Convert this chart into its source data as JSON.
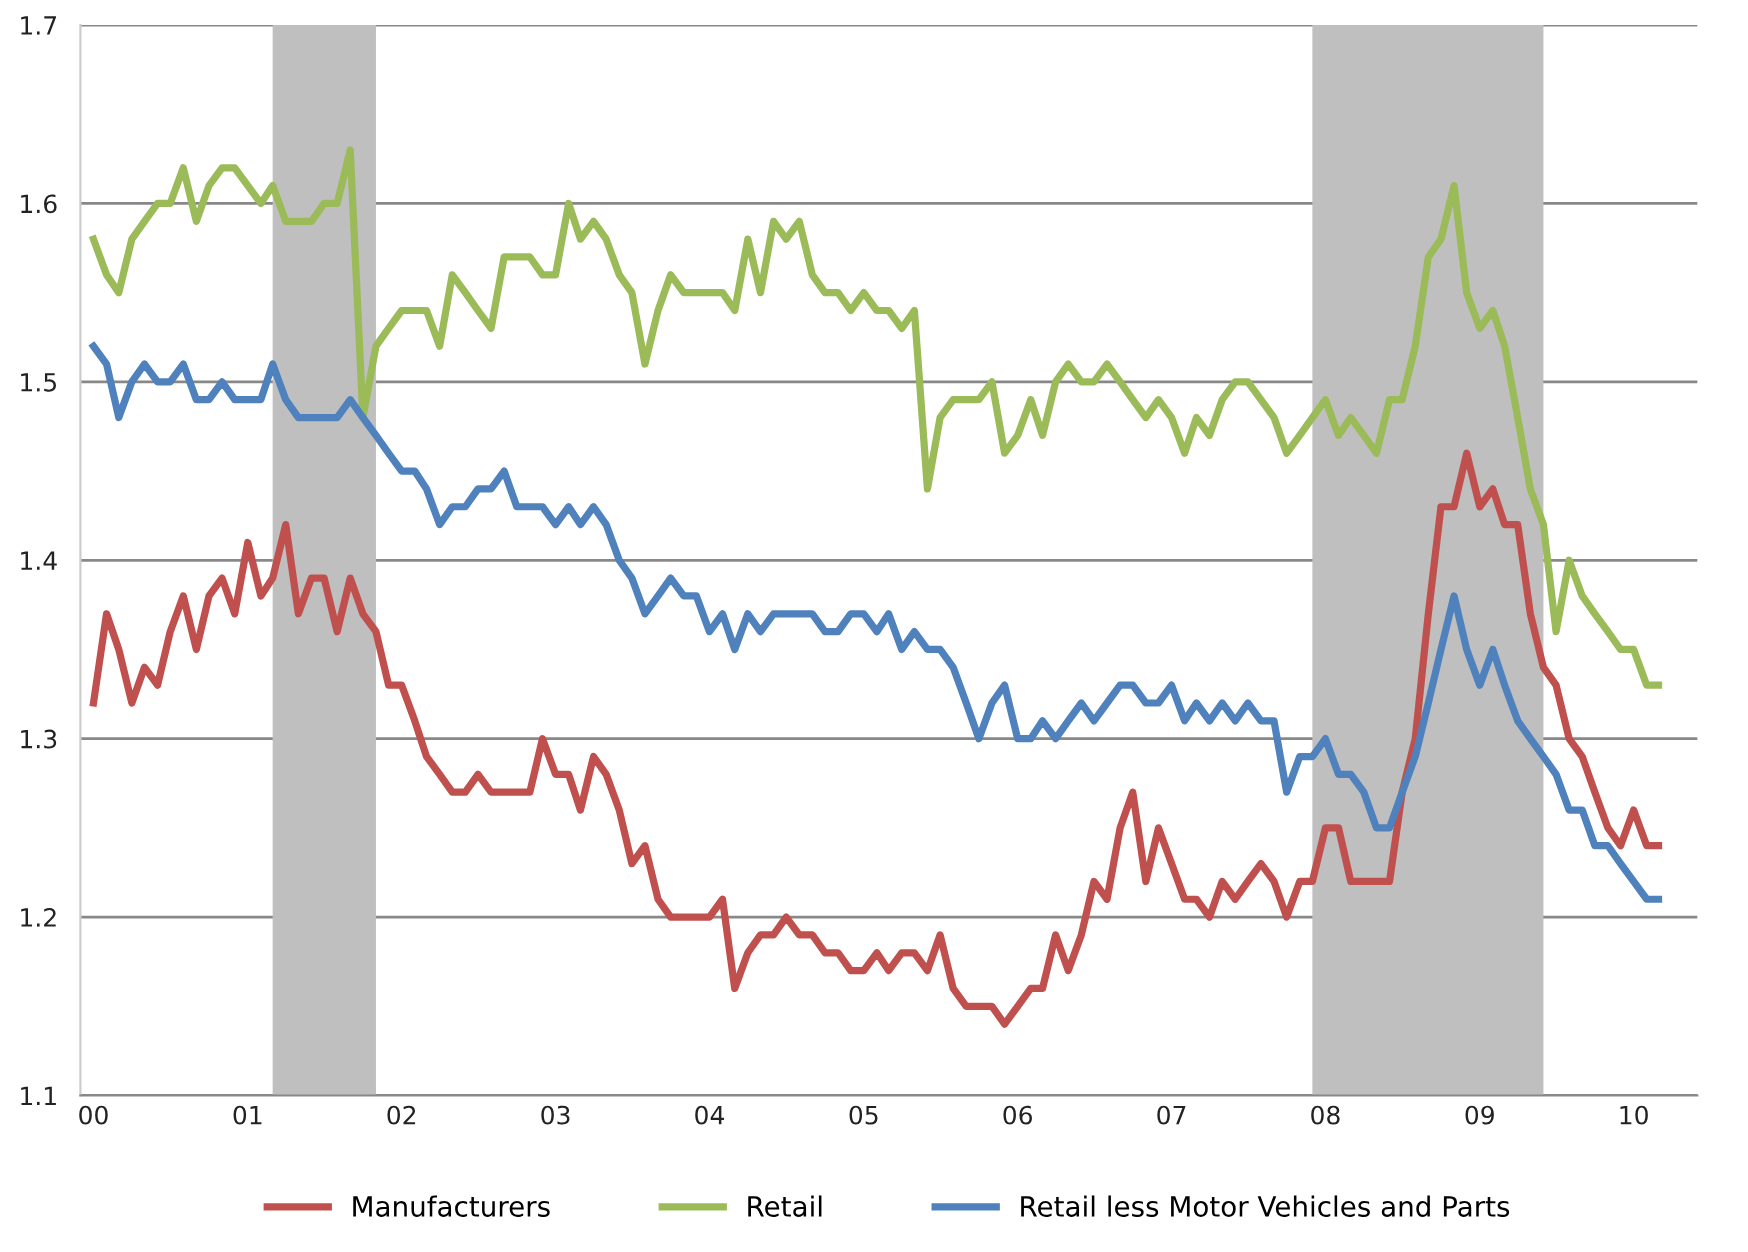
{
  "chart_data": {
    "type": "line",
    "x": [
      "2000-01",
      "2000-02",
      "2000-03",
      "2000-04",
      "2000-05",
      "2000-06",
      "2000-07",
      "2000-08",
      "2000-09",
      "2000-10",
      "2000-11",
      "2000-12",
      "2001-01",
      "2001-02",
      "2001-03",
      "2001-04",
      "2001-05",
      "2001-06",
      "2001-07",
      "2001-08",
      "2001-09",
      "2001-10",
      "2001-11",
      "2001-12",
      "2002-01",
      "2002-02",
      "2002-03",
      "2002-04",
      "2002-05",
      "2002-06",
      "2002-07",
      "2002-08",
      "2002-09",
      "2002-10",
      "2002-11",
      "2002-12",
      "2003-01",
      "2003-02",
      "2003-03",
      "2003-04",
      "2003-05",
      "2003-06",
      "2003-07",
      "2003-08",
      "2003-09",
      "2003-10",
      "2003-11",
      "2003-12",
      "2004-01",
      "2004-02",
      "2004-03",
      "2004-04",
      "2004-05",
      "2004-06",
      "2004-07",
      "2004-08",
      "2004-09",
      "2004-10",
      "2004-11",
      "2004-12",
      "2005-01",
      "2005-02",
      "2005-03",
      "2005-04",
      "2005-05",
      "2005-06",
      "2005-07",
      "2005-08",
      "2005-09",
      "2005-10",
      "2005-11",
      "2005-12",
      "2006-01",
      "2006-02",
      "2006-03",
      "2006-04",
      "2006-05",
      "2006-06",
      "2006-07",
      "2006-08",
      "2006-09",
      "2006-10",
      "2006-11",
      "2006-12",
      "2007-01",
      "2007-02",
      "2007-03",
      "2007-04",
      "2007-05",
      "2007-06",
      "2007-07",
      "2007-08",
      "2007-09",
      "2007-10",
      "2007-11",
      "2007-12",
      "2008-01",
      "2008-02",
      "2008-03",
      "2008-04",
      "2008-05",
      "2008-06",
      "2008-07",
      "2008-08",
      "2008-09",
      "2008-10",
      "2008-11",
      "2008-12",
      "2009-01",
      "2009-02",
      "2009-03",
      "2009-04",
      "2009-05",
      "2009-06",
      "2009-07",
      "2009-08",
      "2009-09",
      "2009-10",
      "2009-11",
      "2009-12",
      "2010-01",
      "2010-02",
      "2010-03"
    ],
    "series": [
      {
        "name": "Manufacturers",
        "color": "#c0504d",
        "values": [
          1.32,
          1.37,
          1.35,
          1.32,
          1.34,
          1.33,
          1.36,
          1.38,
          1.35,
          1.38,
          1.39,
          1.37,
          1.41,
          1.38,
          1.39,
          1.42,
          1.37,
          1.39,
          1.39,
          1.36,
          1.39,
          1.37,
          1.36,
          1.33,
          1.33,
          1.31,
          1.29,
          1.28,
          1.27,
          1.27,
          1.28,
          1.27,
          1.27,
          1.27,
          1.27,
          1.3,
          1.28,
          1.28,
          1.26,
          1.29,
          1.28,
          1.26,
          1.23,
          1.24,
          1.21,
          1.2,
          1.2,
          1.2,
          1.2,
          1.21,
          1.16,
          1.18,
          1.19,
          1.19,
          1.2,
          1.19,
          1.19,
          1.18,
          1.18,
          1.17,
          1.17,
          1.18,
          1.17,
          1.18,
          1.18,
          1.17,
          1.19,
          1.16,
          1.15,
          1.15,
          1.15,
          1.14,
          1.15,
          1.16,
          1.16,
          1.19,
          1.17,
          1.19,
          1.22,
          1.21,
          1.25,
          1.27,
          1.22,
          1.25,
          1.23,
          1.21,
          1.21,
          1.2,
          1.22,
          1.21,
          1.22,
          1.23,
          1.22,
          1.2,
          1.22,
          1.22,
          1.25,
          1.25,
          1.22,
          1.22,
          1.22,
          1.22,
          1.27,
          1.3,
          1.37,
          1.43,
          1.43,
          1.46,
          1.43,
          1.44,
          1.42,
          1.42,
          1.37,
          1.34,
          1.33,
          1.3,
          1.29,
          1.27,
          1.25,
          1.24,
          1.26,
          1.24,
          1.24
        ]
      },
      {
        "name": "Retail",
        "color": "#9bbb59",
        "values": [
          1.58,
          1.56,
          1.55,
          1.58,
          1.59,
          1.6,
          1.6,
          1.62,
          1.59,
          1.61,
          1.62,
          1.62,
          1.61,
          1.6,
          1.61,
          1.59,
          1.59,
          1.59,
          1.6,
          1.6,
          1.63,
          1.48,
          1.52,
          1.53,
          1.54,
          1.54,
          1.54,
          1.52,
          1.56,
          1.55,
          1.54,
          1.53,
          1.57,
          1.57,
          1.57,
          1.56,
          1.56,
          1.6,
          1.58,
          1.59,
          1.58,
          1.56,
          1.55,
          1.51,
          1.54,
          1.56,
          1.55,
          1.55,
          1.55,
          1.55,
          1.54,
          1.58,
          1.55,
          1.59,
          1.58,
          1.59,
          1.56,
          1.55,
          1.55,
          1.54,
          1.55,
          1.54,
          1.54,
          1.53,
          1.54,
          1.44,
          1.48,
          1.49,
          1.49,
          1.49,
          1.5,
          1.46,
          1.47,
          1.49,
          1.47,
          1.5,
          1.51,
          1.5,
          1.5,
          1.51,
          1.5,
          1.49,
          1.48,
          1.49,
          1.48,
          1.46,
          1.48,
          1.47,
          1.49,
          1.5,
          1.5,
          1.49,
          1.48,
          1.46,
          1.47,
          1.48,
          1.49,
          1.47,
          1.48,
          1.47,
          1.46,
          1.49,
          1.49,
          1.52,
          1.57,
          1.58,
          1.61,
          1.55,
          1.53,
          1.54,
          1.52,
          1.48,
          1.44,
          1.42,
          1.36,
          1.4,
          1.38,
          1.37,
          1.36,
          1.35,
          1.35,
          1.33,
          1.33
        ]
      },
      {
        "name": "Retail less Motor Vehicles and Parts",
        "color": "#4f81bd",
        "values": [
          1.52,
          1.51,
          1.48,
          1.5,
          1.51,
          1.5,
          1.5,
          1.51,
          1.49,
          1.49,
          1.5,
          1.49,
          1.49,
          1.49,
          1.51,
          1.49,
          1.48,
          1.48,
          1.48,
          1.48,
          1.49,
          1.48,
          1.47,
          1.46,
          1.45,
          1.45,
          1.44,
          1.42,
          1.43,
          1.43,
          1.44,
          1.44,
          1.45,
          1.43,
          1.43,
          1.43,
          1.42,
          1.43,
          1.42,
          1.43,
          1.42,
          1.4,
          1.39,
          1.37,
          1.38,
          1.39,
          1.38,
          1.38,
          1.36,
          1.37,
          1.35,
          1.37,
          1.36,
          1.37,
          1.37,
          1.37,
          1.37,
          1.36,
          1.36,
          1.37,
          1.37,
          1.36,
          1.37,
          1.35,
          1.36,
          1.35,
          1.35,
          1.34,
          1.32,
          1.3,
          1.32,
          1.33,
          1.3,
          1.3,
          1.31,
          1.3,
          1.31,
          1.32,
          1.31,
          1.32,
          1.33,
          1.33,
          1.32,
          1.32,
          1.33,
          1.31,
          1.32,
          1.31,
          1.32,
          1.31,
          1.32,
          1.31,
          1.31,
          1.27,
          1.29,
          1.29,
          1.3,
          1.28,
          1.28,
          1.27,
          1.25,
          1.25,
          1.27,
          1.29,
          1.32,
          1.35,
          1.38,
          1.35,
          1.33,
          1.35,
          1.33,
          1.31,
          1.3,
          1.29,
          1.28,
          1.26,
          1.26,
          1.24,
          1.24,
          1.23,
          1.22,
          1.21,
          1.21
        ]
      }
    ],
    "bands": [
      {
        "axis": "x",
        "from": "2001-03",
        "to": "2001-11",
        "color": "#bfbfbf"
      },
      {
        "axis": "x",
        "from": "2007-12",
        "to": "2009-06",
        "color": "#bfbfbf"
      }
    ],
    "xlim": [
      "1999-12",
      "2010-06"
    ],
    "xticks": [
      {
        "value": "2000-01",
        "label": "00"
      },
      {
        "value": "2001-01",
        "label": "01"
      },
      {
        "value": "2002-01",
        "label": "02"
      },
      {
        "value": "2003-01",
        "label": "03"
      },
      {
        "value": "2004-01",
        "label": "04"
      },
      {
        "value": "2005-01",
        "label": "05"
      },
      {
        "value": "2006-01",
        "label": "06"
      },
      {
        "value": "2007-01",
        "label": "07"
      },
      {
        "value": "2008-01",
        "label": "08"
      },
      {
        "value": "2009-01",
        "label": "09"
      },
      {
        "value": "2010-01",
        "label": "10"
      }
    ],
    "ylim": [
      1.1,
      1.7
    ],
    "yticks": [
      1.1,
      1.2,
      1.3,
      1.4,
      1.5,
      1.6,
      1.7
    ],
    "grid": "y",
    "legend": "bottom",
    "marker": "none",
    "line_style": "solid"
  }
}
